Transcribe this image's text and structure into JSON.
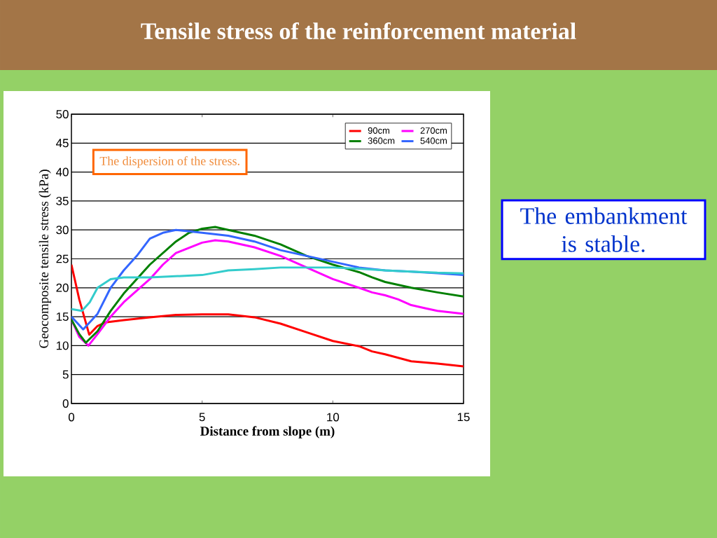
{
  "chart_data": {
    "type": "line",
    "title": "Tensile stress of the reinforcement material",
    "xlabel": "Distance from slope (m)",
    "ylabel": "Geocomposite tensile stress (kPa)",
    "annotations": [
      "The dispersion of the stress.",
      "The embankment is stable."
    ],
    "xlim": [
      0,
      15
    ],
    "ylim": [
      0,
      50
    ],
    "xticks": [
      0,
      5,
      10,
      15
    ],
    "yticks": [
      0,
      5,
      10,
      15,
      20,
      25,
      30,
      35,
      40,
      45,
      50
    ],
    "grid": "y",
    "legend": "top right",
    "line_style": "solid",
    "marker": "none",
    "series": [
      {
        "name": "90cm",
        "color": "#ff0000",
        "x": [
          0,
          0.3,
          0.68,
          1,
          1.3,
          2,
          3,
          4,
          5,
          6,
          7,
          8,
          9,
          10,
          11,
          11.5,
          12,
          13,
          14,
          15
        ],
        "values": [
          24,
          18,
          11.9,
          13.4,
          14,
          14.4,
          14.9,
          15.3,
          15.4,
          15.4,
          14.9,
          13.8,
          12.3,
          10.8,
          9.9,
          9,
          8.5,
          7.3,
          6.9,
          6.4
        ]
      },
      {
        "name": "270cm",
        "color": "#ff00ff",
        "x": [
          0,
          0.3,
          0.65,
          1,
          1.5,
          2,
          3,
          3.5,
          4,
          5,
          5.5,
          6,
          7,
          8,
          9,
          10,
          11,
          11.5,
          12,
          12.5,
          13,
          13.5,
          14,
          15
        ],
        "values": [
          14.5,
          11.5,
          10,
          12,
          15,
          17.5,
          21.5,
          24,
          26,
          27.8,
          28.2,
          28,
          27,
          25.5,
          23.5,
          21.5,
          20,
          19.2,
          18.7,
          18,
          17,
          16.5,
          16,
          15.5
        ]
      },
      {
        "name": "360cm",
        "color": "#008000",
        "x": [
          0,
          0.3,
          0.55,
          1,
          1.5,
          2,
          3,
          4,
          4.5,
          5,
          5.5,
          6,
          7,
          8,
          9,
          10,
          11,
          11.5,
          12,
          13,
          14,
          15
        ],
        "values": [
          14.5,
          12,
          10.5,
          12.5,
          16,
          19,
          24,
          28,
          29.5,
          30.2,
          30.5,
          30,
          29,
          27.5,
          25.5,
          24,
          22.7,
          21.8,
          21,
          20,
          19.2,
          18.5
        ]
      },
      {
        "name": "540cm",
        "color": "#3366ff",
        "x": [
          0,
          0.45,
          1,
          1.5,
          2,
          2.5,
          3,
          3.5,
          4,
          5,
          6,
          7,
          8,
          9,
          10,
          11,
          12,
          13,
          14,
          15
        ],
        "values": [
          15,
          12.8,
          15.5,
          20,
          23,
          25.5,
          28.5,
          29.5,
          30,
          29.5,
          29,
          28,
          26.5,
          25.5,
          24.5,
          23.5,
          23,
          22.8,
          22.5,
          22.2
        ]
      },
      {
        "color": "#33cccc",
        "x": [
          0,
          0.4,
          0.7,
          1,
          1.5,
          2,
          3,
          4,
          5,
          6,
          7,
          8,
          9,
          10,
          11,
          12,
          13,
          14,
          15
        ],
        "values": [
          16.3,
          16,
          17.5,
          20,
          21.5,
          21.8,
          21.8,
          22,
          22.2,
          23,
          23.2,
          23.5,
          23.5,
          23.5,
          23.3,
          23,
          22.8,
          22.6,
          22.5
        ]
      }
    ]
  }
}
